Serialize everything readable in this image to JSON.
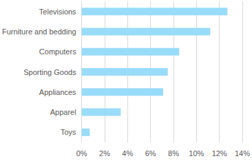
{
  "chart_data": {
    "type": "bar",
    "orientation": "horizontal",
    "categories": [
      "Televisions",
      "Furniture and bedding",
      "Computers",
      "Sporting Goods",
      "Appliances",
      "Apparel",
      "Toys"
    ],
    "values": [
      12.7,
      11.2,
      8.5,
      7.5,
      7.1,
      3.4,
      0.7
    ],
    "color": "#99dcf9",
    "xlim": [
      0,
      14
    ],
    "xticks": [
      {
        "value": 0,
        "label": "0%"
      },
      {
        "value": 2,
        "label": "2%"
      },
      {
        "value": 4,
        "label": "4%"
      },
      {
        "value": 6,
        "label": "6%"
      },
      {
        "value": 8,
        "label": "8%"
      },
      {
        "value": 10,
        "label": "10%"
      },
      {
        "value": 12,
        "label": "12%"
      },
      {
        "value": 14,
        "label": "14%"
      }
    ],
    "grid": true
  }
}
